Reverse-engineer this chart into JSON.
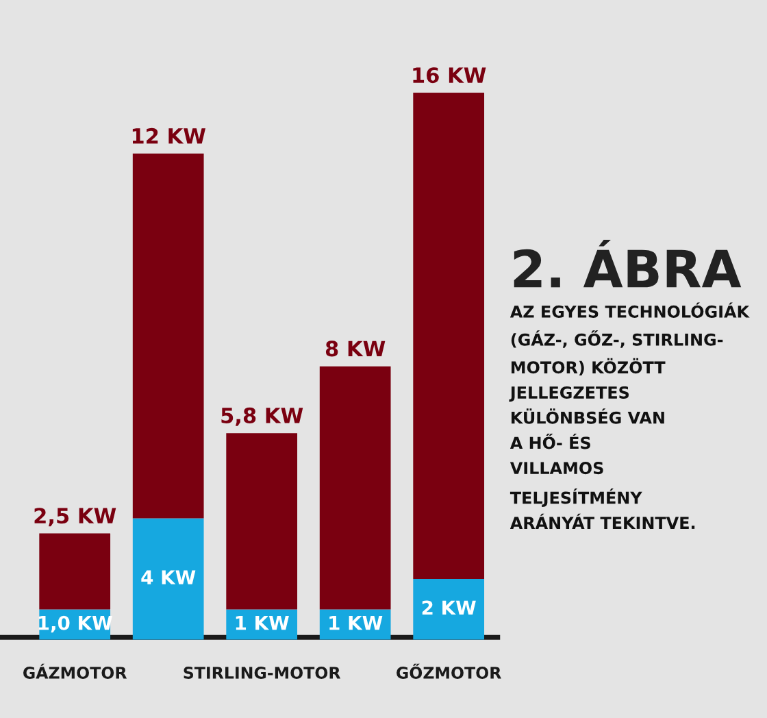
{
  "chart_data": {
    "type": "bar",
    "title": "2. ÁBRA",
    "annotations": [
      "AZ EGYES TECHNOLÓGIÁK\n(GÁZ-, GŐZ-, STIRLING-\nMOTOR) KÖZÖTT\nJELLEGZETES\nKÜLÖNBSÉG VAN\nA HŐ- ÉS\nVILLAMOS\nTELJESÍTMÉNY\nARÁNYÁT TEKINTVE."
    ],
    "categories": [
      "GÁZMOTOR",
      null,
      "STIRLING-MOTOR",
      null,
      "GŐZMOTOR"
    ],
    "stacked": true,
    "tick_labels": "x",
    "grid": false,
    "legend": false,
    "series": [
      {
        "color": "#16a8e0",
        "values": [
          1.0,
          4,
          1,
          1,
          2
        ],
        "value_labels": [
          "1,0 KW",
          "4 KW",
          "1 KW",
          "1 KW",
          "2 KW"
        ]
      },
      {
        "color": "#7a0010",
        "values": [
          2.5,
          12,
          5.8,
          8,
          16
        ],
        "value_labels": [
          "2,5 KW",
          "12 KW",
          "5,8 KW",
          "8 KW",
          "16 KW"
        ]
      }
    ]
  }
}
